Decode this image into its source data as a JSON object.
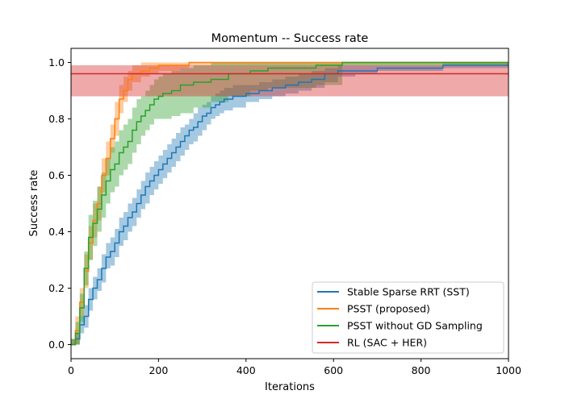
{
  "chart_data": {
    "type": "line",
    "title": "Momentum -- Success rate",
    "xlabel": "Iterations",
    "ylabel": "Success rate",
    "xlim": [
      0,
      1000
    ],
    "ylim": [
      -0.05,
      1.05
    ],
    "xticks": [
      0,
      200,
      400,
      600,
      800,
      1000
    ],
    "xtick_labels": [
      "0",
      "200",
      "400",
      "600",
      "800",
      "1000"
    ],
    "yticks": [
      0.0,
      0.2,
      0.4,
      0.6,
      0.8,
      1.0
    ],
    "ytick_labels": [
      "0.0",
      "0.2",
      "0.4",
      "0.6",
      "0.8",
      "1.0"
    ],
    "grid": false,
    "legend_position": "lower-right",
    "series": [
      {
        "name": "Stable Sparse RRT (SST)",
        "color": "#1f77b4",
        "step": true,
        "x": [
          0,
          10,
          20,
          30,
          40,
          50,
          60,
          70,
          80,
          90,
          100,
          110,
          120,
          130,
          140,
          150,
          160,
          170,
          180,
          190,
          200,
          210,
          220,
          230,
          240,
          250,
          260,
          270,
          280,
          290,
          300,
          310,
          320,
          330,
          340,
          350,
          370,
          400,
          430,
          460,
          490,
          520,
          550,
          580,
          610,
          650,
          700,
          800,
          850,
          1000
        ],
        "y": [
          0.0,
          0.02,
          0.07,
          0.1,
          0.16,
          0.2,
          0.23,
          0.27,
          0.31,
          0.33,
          0.36,
          0.4,
          0.42,
          0.45,
          0.47,
          0.5,
          0.53,
          0.56,
          0.58,
          0.6,
          0.62,
          0.64,
          0.66,
          0.68,
          0.7,
          0.72,
          0.74,
          0.76,
          0.77,
          0.79,
          0.81,
          0.82,
          0.84,
          0.85,
          0.86,
          0.87,
          0.88,
          0.89,
          0.9,
          0.91,
          0.92,
          0.93,
          0.94,
          0.96,
          0.97,
          0.97,
          0.98,
          0.98,
          0.99,
          0.99
        ],
        "band_low": [
          0.0,
          0.0,
          0.04,
          0.06,
          0.12,
          0.16,
          0.19,
          0.22,
          0.27,
          0.28,
          0.31,
          0.35,
          0.37,
          0.4,
          0.42,
          0.45,
          0.48,
          0.5,
          0.53,
          0.55,
          0.57,
          0.59,
          0.61,
          0.63,
          0.65,
          0.67,
          0.69,
          0.71,
          0.72,
          0.74,
          0.76,
          0.78,
          0.8,
          0.81,
          0.82,
          0.83,
          0.84,
          0.86,
          0.87,
          0.88,
          0.89,
          0.9,
          0.91,
          0.93,
          0.95,
          0.96,
          0.97,
          0.97,
          0.98,
          0.98
        ],
        "band_high": [
          0.02,
          0.04,
          0.1,
          0.14,
          0.2,
          0.24,
          0.27,
          0.32,
          0.36,
          0.38,
          0.41,
          0.45,
          0.47,
          0.5,
          0.52,
          0.55,
          0.58,
          0.61,
          0.63,
          0.65,
          0.67,
          0.69,
          0.71,
          0.73,
          0.75,
          0.77,
          0.78,
          0.8,
          0.82,
          0.84,
          0.85,
          0.86,
          0.88,
          0.89,
          0.9,
          0.91,
          0.92,
          0.92,
          0.93,
          0.94,
          0.95,
          0.96,
          0.97,
          0.98,
          0.99,
          0.99,
          0.99,
          0.99,
          1.0,
          1.0
        ]
      },
      {
        "name": "PSST (proposed)",
        "color": "#ff7f0e",
        "step": true,
        "x": [
          0,
          10,
          20,
          30,
          40,
          50,
          60,
          70,
          80,
          90,
          100,
          110,
          120,
          130,
          140,
          160,
          180,
          200,
          220,
          250,
          270,
          1000
        ],
        "y": [
          0.0,
          0.05,
          0.15,
          0.26,
          0.36,
          0.44,
          0.5,
          0.6,
          0.66,
          0.73,
          0.8,
          0.87,
          0.9,
          0.94,
          0.96,
          0.97,
          0.98,
          0.99,
          0.99,
          0.99,
          1.0,
          1.0
        ],
        "band_low": [
          0.0,
          0.0,
          0.1,
          0.2,
          0.3,
          0.38,
          0.44,
          0.54,
          0.6,
          0.68,
          0.74,
          0.82,
          0.86,
          0.9,
          0.93,
          0.95,
          0.96,
          0.97,
          0.97,
          0.98,
          0.99,
          0.99
        ],
        "band_high": [
          0.02,
          0.1,
          0.2,
          0.32,
          0.42,
          0.5,
          0.56,
          0.66,
          0.72,
          0.78,
          0.86,
          0.92,
          0.95,
          0.97,
          0.99,
          1.0,
          1.0,
          1.0,
          1.0,
          1.0,
          1.0,
          1.0
        ]
      },
      {
        "name": "PSST without GD Sampling",
        "color": "#2ca02c",
        "step": true,
        "x": [
          0,
          10,
          20,
          30,
          40,
          50,
          60,
          70,
          80,
          90,
          100,
          110,
          120,
          130,
          140,
          150,
          160,
          170,
          180,
          190,
          200,
          210,
          230,
          250,
          280,
          320,
          360,
          410,
          450,
          500,
          560,
          620,
          1000
        ],
        "y": [
          0.0,
          0.04,
          0.13,
          0.27,
          0.38,
          0.43,
          0.48,
          0.53,
          0.58,
          0.62,
          0.64,
          0.68,
          0.7,
          0.72,
          0.76,
          0.79,
          0.81,
          0.83,
          0.85,
          0.87,
          0.88,
          0.89,
          0.9,
          0.92,
          0.93,
          0.94,
          0.96,
          0.97,
          0.98,
          0.98,
          0.99,
          1.0,
          1.0
        ],
        "band_low": [
          0.0,
          0.0,
          0.08,
          0.21,
          0.3,
          0.35,
          0.4,
          0.45,
          0.5,
          0.54,
          0.56,
          0.6,
          0.62,
          0.64,
          0.68,
          0.71,
          0.74,
          0.76,
          0.78,
          0.8,
          0.8,
          0.8,
          0.81,
          0.82,
          0.84,
          0.86,
          0.88,
          0.9,
          0.91,
          0.91,
          0.92,
          0.99,
          0.99
        ],
        "band_high": [
          0.02,
          0.08,
          0.18,
          0.33,
          0.46,
          0.51,
          0.56,
          0.61,
          0.66,
          0.7,
          0.72,
          0.76,
          0.78,
          0.8,
          0.84,
          0.87,
          0.88,
          0.9,
          0.92,
          0.94,
          0.95,
          0.96,
          0.97,
          0.98,
          0.99,
          1.0,
          1.0,
          1.0,
          1.0,
          1.0,
          1.0,
          1.0,
          1.0
        ]
      },
      {
        "name": "RL (SAC + HER)",
        "color": "#d62728",
        "step": false,
        "x": [
          0,
          1000
        ],
        "y": [
          0.96,
          0.96
        ],
        "band_low": [
          0.88,
          0.88
        ],
        "band_high": [
          0.99,
          0.99
        ]
      }
    ]
  }
}
